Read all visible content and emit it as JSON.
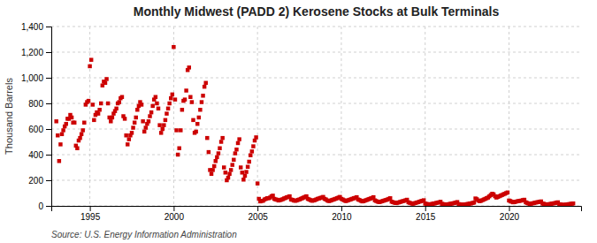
{
  "chart_data": {
    "type": "scatter",
    "title": "Monthly Midwest (PADD 2) Kerosene Stocks at Bulk Terminals",
    "y_label": "Thousand Barrels",
    "source": "Source: U.S. Energy Information Administration",
    "color": "#cc0000",
    "marker": "square",
    "grid": true,
    "xlim": [
      1992.7,
      2024.3
    ],
    "xticks": [
      1995,
      2000,
      2005,
      2010,
      2015,
      2020
    ],
    "ylim": [
      0,
      1400
    ],
    "yticks": [
      0,
      200,
      400,
      600,
      800,
      {
        "value": 1000,
        "label": "1,000"
      },
      {
        "value": 1200,
        "label": "1,200"
      },
      {
        "value": 1400,
        "label": "1,400"
      }
    ],
    "x": [
      1993.0,
      1993.083,
      1993.167,
      1993.25,
      1993.333,
      1993.417,
      1993.5,
      1993.583,
      1993.667,
      1993.75,
      1993.833,
      1993.917,
      1994.0,
      1994.083,
      1994.167,
      1994.25,
      1994.333,
      1994.417,
      1994.5,
      1994.583,
      1994.667,
      1994.75,
      1994.833,
      1994.917,
      1995.0,
      1995.083,
      1995.167,
      1995.25,
      1995.333,
      1995.417,
      1995.5,
      1995.583,
      1995.667,
      1995.75,
      1995.833,
      1995.917,
      1996.0,
      1996.083,
      1996.167,
      1996.25,
      1996.333,
      1996.417,
      1996.5,
      1996.583,
      1996.667,
      1996.75,
      1996.833,
      1996.917,
      1997.0,
      1997.083,
      1997.167,
      1997.25,
      1997.333,
      1997.417,
      1997.5,
      1997.583,
      1997.667,
      1997.75,
      1997.833,
      1997.917,
      1998.0,
      1998.083,
      1998.167,
      1998.25,
      1998.333,
      1998.417,
      1998.5,
      1998.583,
      1998.667,
      1998.75,
      1998.833,
      1998.917,
      1999.0,
      1999.083,
      1999.167,
      1999.25,
      1999.333,
      1999.417,
      1999.5,
      1999.583,
      1999.667,
      1999.75,
      1999.833,
      1999.917,
      2000.0,
      2000.083,
      2000.167,
      2000.25,
      2000.333,
      2000.417,
      2000.5,
      2000.583,
      2000.667,
      2000.75,
      2000.833,
      2000.917,
      2001.0,
      2001.083,
      2001.167,
      2001.25,
      2001.333,
      2001.417,
      2001.5,
      2001.583,
      2001.667,
      2001.75,
      2001.833,
      2001.917,
      2002.0,
      2002.083,
      2002.167,
      2002.25,
      2002.333,
      2002.417,
      2002.5,
      2002.583,
      2002.667,
      2002.75,
      2002.833,
      2002.917,
      2003.0,
      2003.083,
      2003.167,
      2003.25,
      2003.333,
      2003.417,
      2003.5,
      2003.583,
      2003.667,
      2003.75,
      2003.833,
      2003.917,
      2004.0,
      2004.083,
      2004.167,
      2004.25,
      2004.333,
      2004.417,
      2004.5,
      2004.583,
      2004.667,
      2004.75,
      2004.833,
      2004.917,
      2005.0,
      2005.083,
      2005.167,
      2005.25,
      2005.333,
      2005.417,
      2005.5,
      2005.583,
      2005.667,
      2005.75,
      2005.833,
      2005.917,
      2006.0,
      2006.083,
      2006.167,
      2006.25,
      2006.333,
      2006.417,
      2006.5,
      2006.583,
      2006.667,
      2006.75,
      2006.833,
      2006.917,
      2007.0,
      2007.083,
      2007.167,
      2007.25,
      2007.333,
      2007.417,
      2007.5,
      2007.583,
      2007.667,
      2007.75,
      2007.833,
      2007.917,
      2008.0,
      2008.083,
      2008.167,
      2008.25,
      2008.333,
      2008.417,
      2008.5,
      2008.583,
      2008.667,
      2008.75,
      2008.833,
      2008.917,
      2009.0,
      2009.083,
      2009.167,
      2009.25,
      2009.333,
      2009.417,
      2009.5,
      2009.583,
      2009.667,
      2009.75,
      2009.833,
      2009.917,
      2010.0,
      2010.083,
      2010.167,
      2010.25,
      2010.333,
      2010.417,
      2010.5,
      2010.583,
      2010.667,
      2010.75,
      2010.833,
      2010.917,
      2011.0,
      2011.083,
      2011.167,
      2011.25,
      2011.333,
      2011.417,
      2011.5,
      2011.583,
      2011.667,
      2011.75,
      2011.833,
      2011.917,
      2012.0,
      2012.083,
      2012.167,
      2012.25,
      2012.333,
      2012.417,
      2012.5,
      2012.583,
      2012.667,
      2012.75,
      2012.833,
      2012.917,
      2013.0,
      2013.083,
      2013.167,
      2013.25,
      2013.333,
      2013.417,
      2013.5,
      2013.583,
      2013.667,
      2013.75,
      2013.833,
      2013.917,
      2014.0,
      2014.083,
      2014.167,
      2014.25,
      2014.333,
      2014.417,
      2014.5,
      2014.583,
      2014.667,
      2014.75,
      2014.833,
      2014.917,
      2015.0,
      2015.083,
      2015.167,
      2015.25,
      2015.333,
      2015.417,
      2015.5,
      2015.583,
      2015.667,
      2015.75,
      2015.833,
      2015.917,
      2016.0,
      2016.083,
      2016.167,
      2016.25,
      2016.333,
      2016.417,
      2016.5,
      2016.583,
      2016.667,
      2016.75,
      2016.833,
      2016.917,
      2017.0,
      2017.083,
      2017.167,
      2017.25,
      2017.333,
      2017.417,
      2017.5,
      2017.583,
      2017.667,
      2017.75,
      2017.833,
      2017.917,
      2018.0,
      2018.083,
      2018.167,
      2018.25,
      2018.333,
      2018.417,
      2018.5,
      2018.583,
      2018.667,
      2018.75,
      2018.833,
      2018.917,
      2019.0,
      2019.083,
      2019.167,
      2019.25,
      2019.333,
      2019.417,
      2019.5,
      2019.583,
      2019.667,
      2019.75,
      2019.833,
      2019.917,
      2020.0,
      2020.083,
      2020.167,
      2020.25,
      2020.333,
      2020.417,
      2020.5,
      2020.583,
      2020.667,
      2020.75,
      2020.833,
      2020.917,
      2021.0,
      2021.083,
      2021.167,
      2021.25,
      2021.333,
      2021.417,
      2021.5,
      2021.583,
      2021.667,
      2021.75,
      2021.833,
      2021.917,
      2022.0,
      2022.083,
      2022.167,
      2022.25,
      2022.333,
      2022.417,
      2022.5,
      2022.583,
      2022.667,
      2022.75,
      2022.833,
      2022.917,
      2023.0,
      2023.083,
      2023.167,
      2023.25,
      2023.333,
      2023.417,
      2023.5,
      2023.583,
      2023.667,
      2023.75,
      2023.833
    ],
    "values": [
      660,
      550,
      350,
      480,
      560,
      590,
      620,
      640,
      680,
      680,
      710,
      690,
      650,
      650,
      470,
      450,
      510,
      530,
      560,
      590,
      650,
      790,
      810,
      820,
      1090,
      1140,
      790,
      670,
      710,
      730,
      720,
      750,
      800,
      940,
      970,
      960,
      990,
      800,
      690,
      660,
      690,
      720,
      740,
      760,
      800,
      810,
      840,
      850,
      700,
      680,
      550,
      480,
      520,
      550,
      570,
      610,
      650,
      690,
      750,
      780,
      810,
      790,
      660,
      580,
      610,
      640,
      660,
      700,
      730,
      780,
      830,
      850,
      800,
      760,
      630,
      570,
      600,
      630,
      670,
      720,
      760,
      800,
      840,
      870,
      1240,
      830,
      590,
      400,
      450,
      590,
      750,
      820,
      830,
      900,
      1060,
      1080,
      850,
      810,
      670,
      570,
      580,
      640,
      690,
      750,
      810,
      860,
      930,
      960,
      530,
      420,
      280,
      250,
      280,
      310,
      350,
      380,
      410,
      450,
      500,
      530,
      300,
      260,
      200,
      220,
      250,
      280,
      320,
      360,
      410,
      440,
      490,
      520,
      300,
      260,
      205,
      235,
      265,
      305,
      345,
      395,
      425,
      465,
      510,
      535,
      175,
      55,
      35,
      40,
      40,
      50,
      55,
      60,
      60,
      65,
      75,
      80,
      55,
      50,
      48,
      42,
      45,
      48,
      52,
      58,
      62,
      67,
      70,
      75,
      50,
      47,
      42,
      40,
      42,
      47,
      50,
      55,
      60,
      65,
      70,
      75,
      55,
      50,
      45,
      40,
      42,
      45,
      50,
      55,
      58,
      62,
      65,
      70,
      55,
      50,
      42,
      38,
      40,
      45,
      48,
      52,
      56,
      60,
      65,
      70,
      55,
      50,
      44,
      38,
      40,
      45,
      48,
      52,
      56,
      60,
      63,
      68,
      50,
      46,
      40,
      35,
      37,
      42,
      45,
      50,
      54,
      58,
      62,
      68,
      43,
      38,
      33,
      30,
      32,
      36,
      39,
      43,
      46,
      50,
      55,
      60,
      33,
      29,
      25,
      22,
      24,
      27,
      30,
      34,
      37,
      40,
      44,
      48,
      28,
      24,
      20,
      17,
      19,
      23,
      26,
      29,
      33,
      37,
      40,
      44,
      18,
      16,
      13,
      11,
      13,
      16,
      18,
      20,
      23,
      26,
      28,
      32,
      16,
      14,
      12,
      10,
      12,
      14,
      16,
      18,
      20,
      23,
      26,
      30,
      14,
      12,
      10,
      9,
      10,
      12,
      14,
      16,
      18,
      20,
      23,
      26,
      58,
      52,
      42,
      37,
      40,
      45,
      50,
      55,
      60,
      65,
      75,
      85,
      95,
      90,
      75,
      65,
      70,
      75,
      80,
      85,
      90,
      95,
      100,
      105,
      42,
      38,
      32,
      28,
      30,
      33,
      36,
      38,
      40,
      42,
      45,
      48,
      28,
      23,
      18,
      16,
      18,
      20,
      23,
      26,
      28,
      30,
      32,
      35,
      18,
      16,
      13,
      11,
      12,
      14,
      16,
      18,
      20,
      22,
      25,
      28,
      13,
      11,
      9,
      7,
      9,
      10,
      12,
      14,
      15,
      17,
      19
    ]
  }
}
